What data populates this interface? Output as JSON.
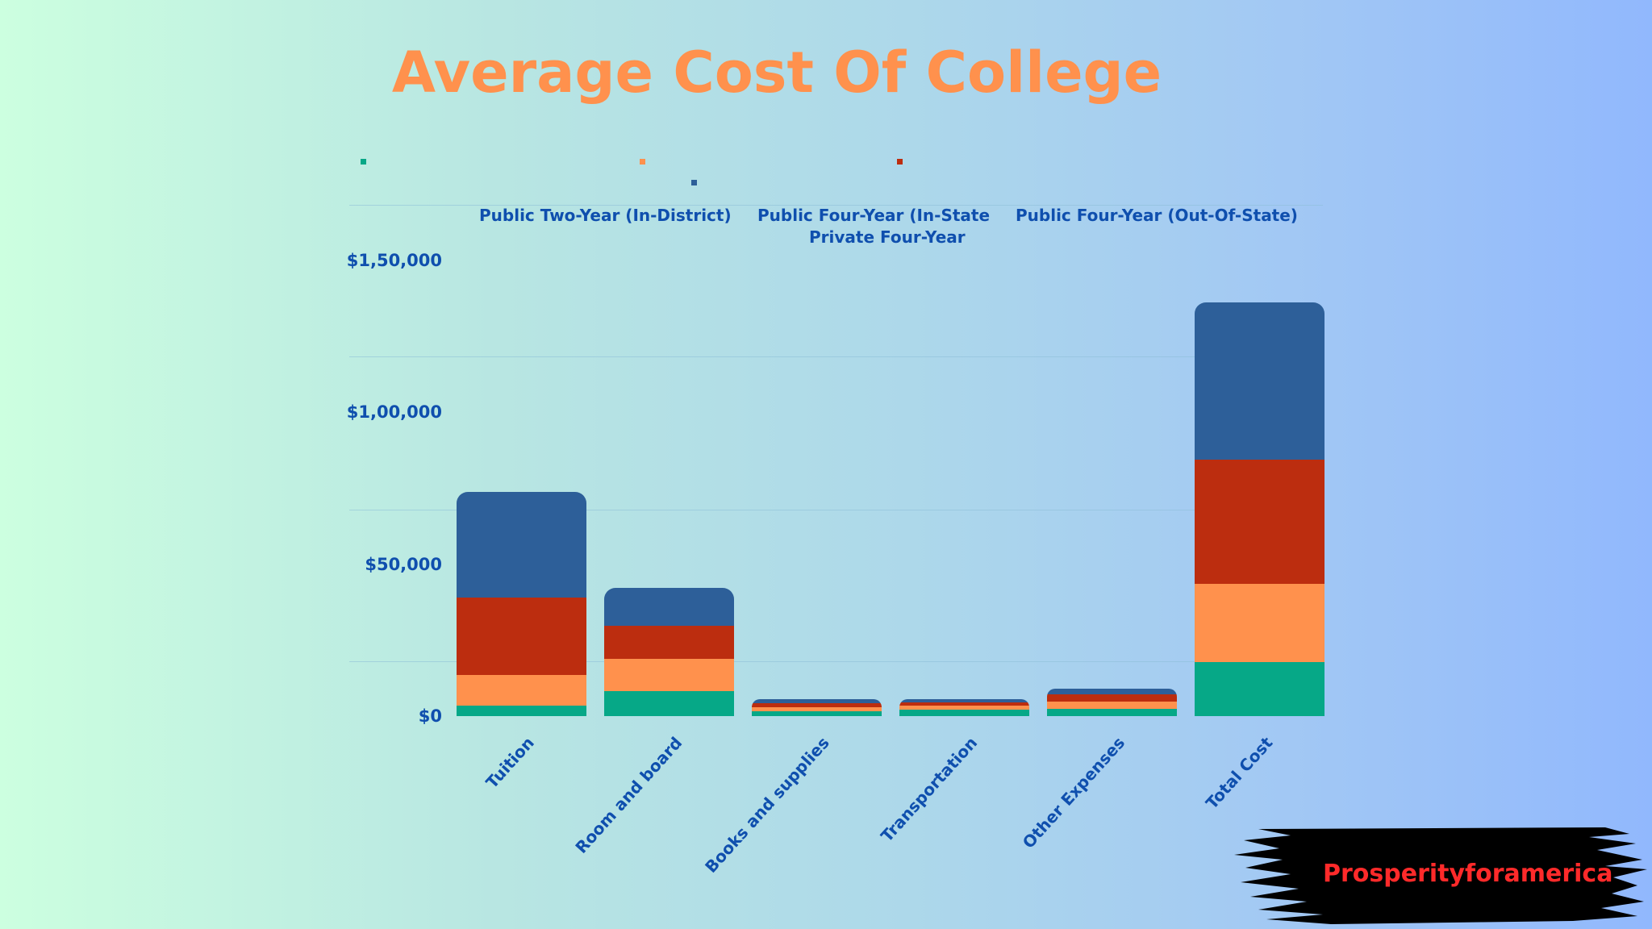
{
  "title": "Average Cost Of College",
  "colors": {
    "public_two_year": "#06a887",
    "public_four_in_state": "#ff914d",
    "public_four_out_of_state": "#bc2d0f",
    "private_four_year": "#2d5f99",
    "axis_text": "#0f4fae",
    "title": "#ff914d",
    "badge_text": "#ff2a2a"
  },
  "legend": [
    {
      "label": "Public Two-Year (In-District)",
      "color": "#06a887"
    },
    {
      "label": "Public Four-Year (In-State",
      "color": "#ff914d"
    },
    {
      "label": "Private Four-Year",
      "color": "#2d5f99"
    },
    {
      "label": "Public Four-Year (Out-Of-State)",
      "color": "#bc2d0f"
    }
  ],
  "y_axis": {
    "ticks": [
      "$0",
      "$50,000",
      "$1,00,000",
      "$1,50,000"
    ]
  },
  "x_axis": {
    "ticks": [
      "Tuition",
      "Room and board",
      "Books and supplies",
      "Transportation",
      "Other Expenses",
      "Total Cost"
    ]
  },
  "badge": {
    "text": "Prosperityforamerica"
  },
  "chart_data": {
    "type": "bar",
    "stacked": true,
    "title": "Average Cost Of College",
    "xlabel": "",
    "ylabel": "",
    "ylim": [
      0,
      150000
    ],
    "y_tick_labels": [
      "$0",
      "$50,000",
      "$1,00,000",
      "$1,50,000"
    ],
    "legend_position": "top",
    "grid": true,
    "categories": [
      "Tuition",
      "Room and board",
      "Books and supplies",
      "Transportation",
      "Other Expenses",
      "Total Cost"
    ],
    "series": [
      {
        "name": "Public Two-Year (In-District)",
        "color": "#06a887",
        "values": [
          3500,
          8200,
          1600,
          2100,
          2500,
          17900
        ]
      },
      {
        "name": "Public Four-Year (In-State",
        "color": "#ff914d",
        "values": [
          10000,
          10800,
          1250,
          1250,
          2300,
          25600
        ]
      },
      {
        "name": "Public Four-Year (Out-Of-State)",
        "color": "#bc2d0f",
        "values": [
          25500,
          10800,
          1300,
          1300,
          2300,
          41200
        ]
      },
      {
        "name": "Private Four-Year",
        "color": "#2d5f99",
        "values": [
          34900,
          12400,
          1400,
          950,
          2000,
          51650
        ]
      }
    ]
  }
}
